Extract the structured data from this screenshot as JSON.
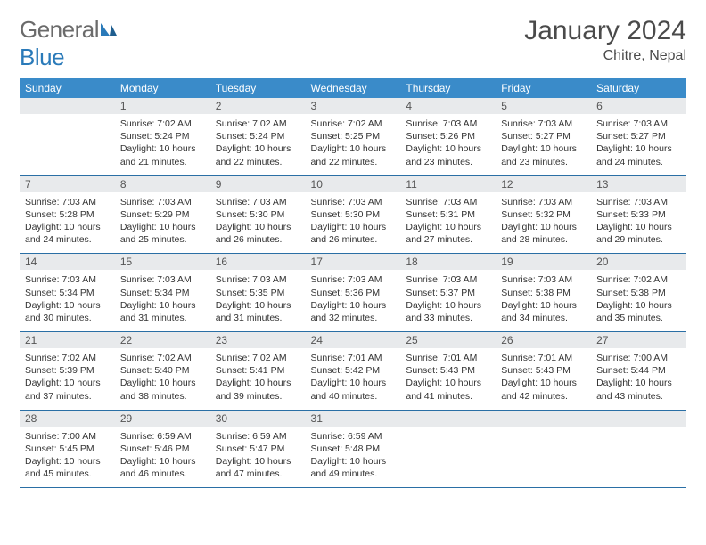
{
  "brand": {
    "part1": "General",
    "part2": "Blue"
  },
  "title": "January 2024",
  "location": "Chitre, Nepal",
  "colors": {
    "header_bg": "#3a8bc9",
    "header_text": "#ffffff",
    "daynum_bg": "#e8eaec",
    "row_border": "#2a6fa5",
    "body_text": "#333333",
    "logo_grey": "#6b6b6b",
    "logo_blue": "#2a7ab9"
  },
  "weekdays": [
    "Sunday",
    "Monday",
    "Tuesday",
    "Wednesday",
    "Thursday",
    "Friday",
    "Saturday"
  ],
  "weeks": [
    [
      null,
      {
        "n": "1",
        "sr": "Sunrise: 7:02 AM",
        "ss": "Sunset: 5:24 PM",
        "d1": "Daylight: 10 hours",
        "d2": "and 21 minutes."
      },
      {
        "n": "2",
        "sr": "Sunrise: 7:02 AM",
        "ss": "Sunset: 5:24 PM",
        "d1": "Daylight: 10 hours",
        "d2": "and 22 minutes."
      },
      {
        "n": "3",
        "sr": "Sunrise: 7:02 AM",
        "ss": "Sunset: 5:25 PM",
        "d1": "Daylight: 10 hours",
        "d2": "and 22 minutes."
      },
      {
        "n": "4",
        "sr": "Sunrise: 7:03 AM",
        "ss": "Sunset: 5:26 PM",
        "d1": "Daylight: 10 hours",
        "d2": "and 23 minutes."
      },
      {
        "n": "5",
        "sr": "Sunrise: 7:03 AM",
        "ss": "Sunset: 5:27 PM",
        "d1": "Daylight: 10 hours",
        "d2": "and 23 minutes."
      },
      {
        "n": "6",
        "sr": "Sunrise: 7:03 AM",
        "ss": "Sunset: 5:27 PM",
        "d1": "Daylight: 10 hours",
        "d2": "and 24 minutes."
      }
    ],
    [
      {
        "n": "7",
        "sr": "Sunrise: 7:03 AM",
        "ss": "Sunset: 5:28 PM",
        "d1": "Daylight: 10 hours",
        "d2": "and 24 minutes."
      },
      {
        "n": "8",
        "sr": "Sunrise: 7:03 AM",
        "ss": "Sunset: 5:29 PM",
        "d1": "Daylight: 10 hours",
        "d2": "and 25 minutes."
      },
      {
        "n": "9",
        "sr": "Sunrise: 7:03 AM",
        "ss": "Sunset: 5:30 PM",
        "d1": "Daylight: 10 hours",
        "d2": "and 26 minutes."
      },
      {
        "n": "10",
        "sr": "Sunrise: 7:03 AM",
        "ss": "Sunset: 5:30 PM",
        "d1": "Daylight: 10 hours",
        "d2": "and 26 minutes."
      },
      {
        "n": "11",
        "sr": "Sunrise: 7:03 AM",
        "ss": "Sunset: 5:31 PM",
        "d1": "Daylight: 10 hours",
        "d2": "and 27 minutes."
      },
      {
        "n": "12",
        "sr": "Sunrise: 7:03 AM",
        "ss": "Sunset: 5:32 PM",
        "d1": "Daylight: 10 hours",
        "d2": "and 28 minutes."
      },
      {
        "n": "13",
        "sr": "Sunrise: 7:03 AM",
        "ss": "Sunset: 5:33 PM",
        "d1": "Daylight: 10 hours",
        "d2": "and 29 minutes."
      }
    ],
    [
      {
        "n": "14",
        "sr": "Sunrise: 7:03 AM",
        "ss": "Sunset: 5:34 PM",
        "d1": "Daylight: 10 hours",
        "d2": "and 30 minutes."
      },
      {
        "n": "15",
        "sr": "Sunrise: 7:03 AM",
        "ss": "Sunset: 5:34 PM",
        "d1": "Daylight: 10 hours",
        "d2": "and 31 minutes."
      },
      {
        "n": "16",
        "sr": "Sunrise: 7:03 AM",
        "ss": "Sunset: 5:35 PM",
        "d1": "Daylight: 10 hours",
        "d2": "and 31 minutes."
      },
      {
        "n": "17",
        "sr": "Sunrise: 7:03 AM",
        "ss": "Sunset: 5:36 PM",
        "d1": "Daylight: 10 hours",
        "d2": "and 32 minutes."
      },
      {
        "n": "18",
        "sr": "Sunrise: 7:03 AM",
        "ss": "Sunset: 5:37 PM",
        "d1": "Daylight: 10 hours",
        "d2": "and 33 minutes."
      },
      {
        "n": "19",
        "sr": "Sunrise: 7:03 AM",
        "ss": "Sunset: 5:38 PM",
        "d1": "Daylight: 10 hours",
        "d2": "and 34 minutes."
      },
      {
        "n": "20",
        "sr": "Sunrise: 7:02 AM",
        "ss": "Sunset: 5:38 PM",
        "d1": "Daylight: 10 hours",
        "d2": "and 35 minutes."
      }
    ],
    [
      {
        "n": "21",
        "sr": "Sunrise: 7:02 AM",
        "ss": "Sunset: 5:39 PM",
        "d1": "Daylight: 10 hours",
        "d2": "and 37 minutes."
      },
      {
        "n": "22",
        "sr": "Sunrise: 7:02 AM",
        "ss": "Sunset: 5:40 PM",
        "d1": "Daylight: 10 hours",
        "d2": "and 38 minutes."
      },
      {
        "n": "23",
        "sr": "Sunrise: 7:02 AM",
        "ss": "Sunset: 5:41 PM",
        "d1": "Daylight: 10 hours",
        "d2": "and 39 minutes."
      },
      {
        "n": "24",
        "sr": "Sunrise: 7:01 AM",
        "ss": "Sunset: 5:42 PM",
        "d1": "Daylight: 10 hours",
        "d2": "and 40 minutes."
      },
      {
        "n": "25",
        "sr": "Sunrise: 7:01 AM",
        "ss": "Sunset: 5:43 PM",
        "d1": "Daylight: 10 hours",
        "d2": "and 41 minutes."
      },
      {
        "n": "26",
        "sr": "Sunrise: 7:01 AM",
        "ss": "Sunset: 5:43 PM",
        "d1": "Daylight: 10 hours",
        "d2": "and 42 minutes."
      },
      {
        "n": "27",
        "sr": "Sunrise: 7:00 AM",
        "ss": "Sunset: 5:44 PM",
        "d1": "Daylight: 10 hours",
        "d2": "and 43 minutes."
      }
    ],
    [
      {
        "n": "28",
        "sr": "Sunrise: 7:00 AM",
        "ss": "Sunset: 5:45 PM",
        "d1": "Daylight: 10 hours",
        "d2": "and 45 minutes."
      },
      {
        "n": "29",
        "sr": "Sunrise: 6:59 AM",
        "ss": "Sunset: 5:46 PM",
        "d1": "Daylight: 10 hours",
        "d2": "and 46 minutes."
      },
      {
        "n": "30",
        "sr": "Sunrise: 6:59 AM",
        "ss": "Sunset: 5:47 PM",
        "d1": "Daylight: 10 hours",
        "d2": "and 47 minutes."
      },
      {
        "n": "31",
        "sr": "Sunrise: 6:59 AM",
        "ss": "Sunset: 5:48 PM",
        "d1": "Daylight: 10 hours",
        "d2": "and 49 minutes."
      },
      null,
      null,
      null
    ]
  ]
}
